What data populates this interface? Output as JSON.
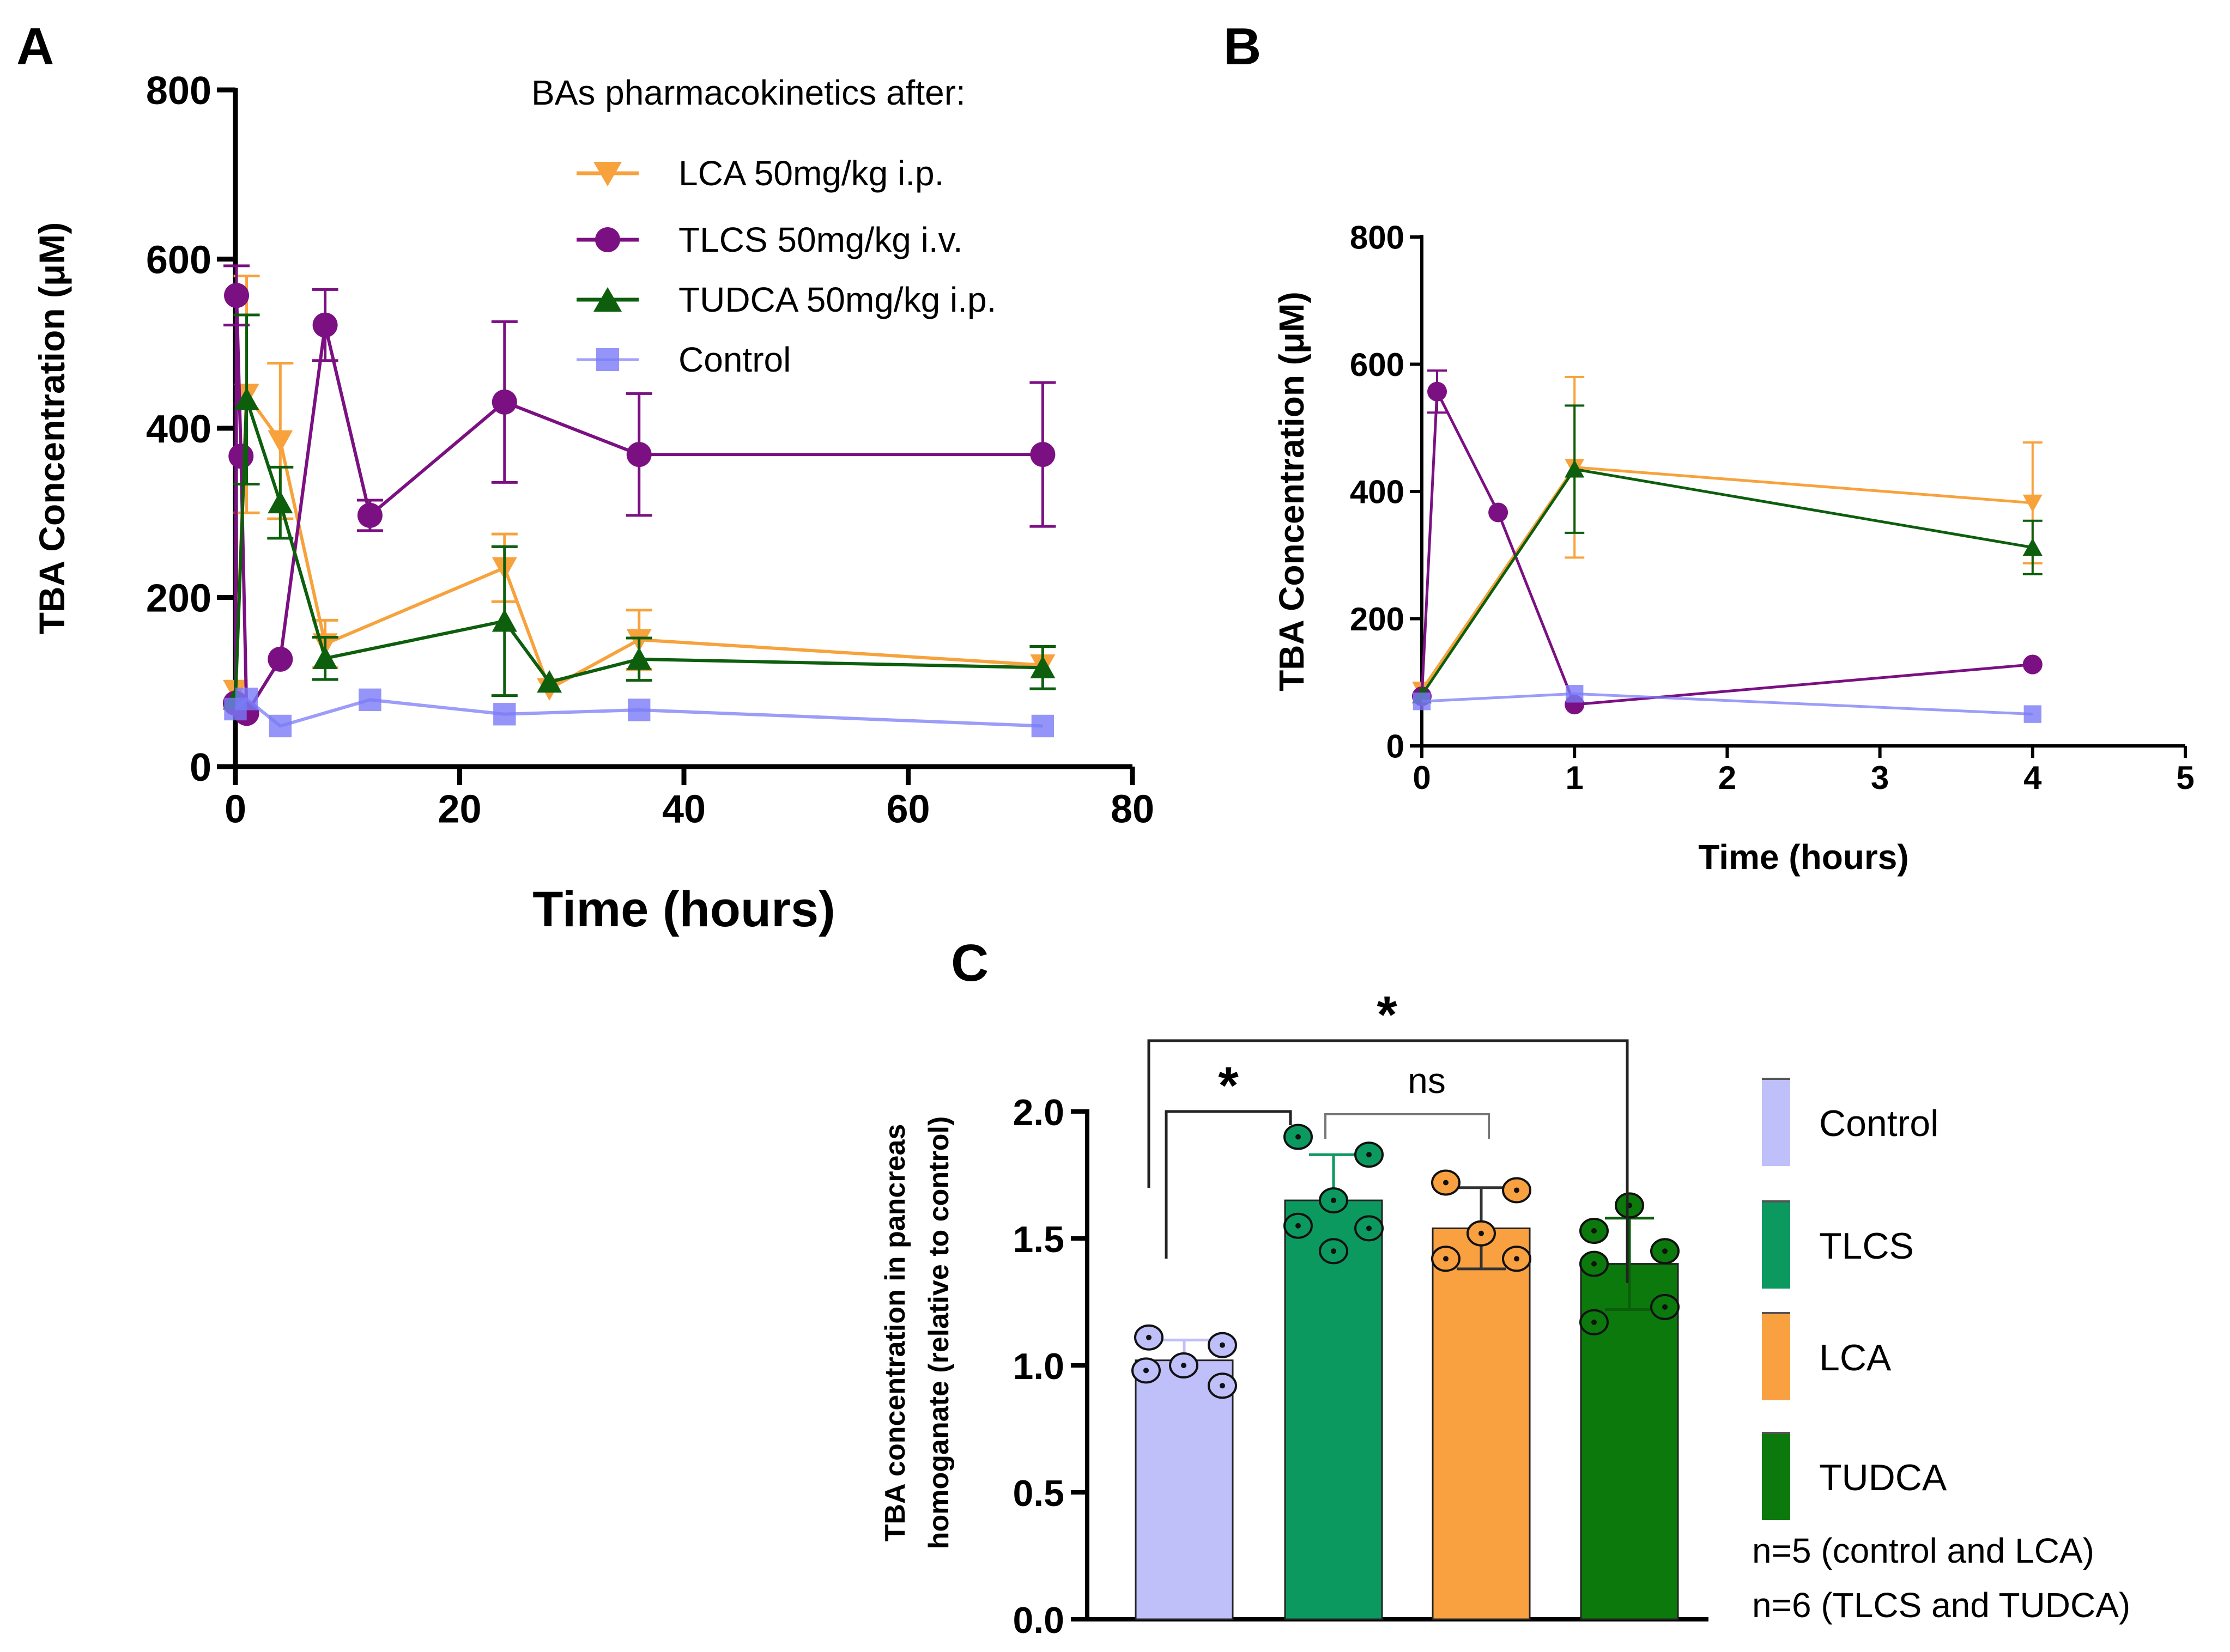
{
  "chart_data": [
    {
      "panel": "A",
      "type": "line",
      "title": "",
      "xlabel": "Time (hours)",
      "ylabel": "TBA Concentration (μM)",
      "xlim": [
        0,
        80
      ],
      "ylim": [
        0,
        800
      ],
      "xticks": [
        0,
        20,
        40,
        60,
        80
      ],
      "yticks": [
        0,
        200,
        400,
        600,
        800
      ],
      "legend_title": "BAs pharmacokinetics after:",
      "legend_position": "top-right",
      "series": [
        {
          "name": "LCA 50mg/kg i.p.",
          "color": "#f7a23c",
          "marker": "triangle-down",
          "x": [
            0,
            1,
            4,
            8,
            24,
            28,
            36,
            72
          ],
          "y": [
            90,
            440,
            385,
            145,
            235,
            92,
            150,
            120
          ],
          "err": [
            0,
            140,
            92,
            28,
            40,
            0,
            35,
            0
          ]
        },
        {
          "name": "TLCS 50mg/kg i.v.",
          "color": "#7b1082",
          "marker": "circle",
          "x": [
            0,
            0.1,
            0.5,
            1,
            4,
            8,
            12,
            24,
            36,
            72
          ],
          "y": [
            75,
            557,
            367,
            63,
            127,
            522,
            297,
            431,
            369,
            369
          ],
          "err": [
            0,
            35,
            0,
            0,
            0,
            42,
            18,
            95,
            72,
            85
          ]
        },
        {
          "name": "TUDCA 50mg/kg i.p.",
          "color": "#0d5e0d",
          "marker": "triangle-up",
          "x": [
            0,
            1,
            4,
            8,
            24,
            28,
            36,
            72
          ],
          "y": [
            80,
            434,
            312,
            128,
            172,
            100,
            127,
            117
          ],
          "err": [
            0,
            100,
            42,
            25,
            88,
            0,
            25,
            25
          ]
        },
        {
          "name": "Control",
          "color": "#7b7bf7",
          "marker": "square",
          "x": [
            0,
            1,
            4,
            12,
            24,
            36,
            72
          ],
          "y": [
            68,
            80,
            48,
            79,
            62,
            67,
            48
          ],
          "err": [
            0,
            0,
            0,
            0,
            0,
            0,
            0
          ]
        }
      ]
    },
    {
      "panel": "B",
      "type": "line",
      "title": "",
      "xlabel": "Time (hours)",
      "ylabel": "TBA Concentration (μM)",
      "xlim": [
        0,
        5
      ],
      "ylim": [
        0,
        800
      ],
      "xticks": [
        0,
        1,
        2,
        3,
        4,
        5
      ],
      "yticks": [
        0,
        200,
        400,
        600,
        800
      ],
      "series": [
        {
          "name": "LCA 50mg/kg i.p.",
          "color": "#f7a23c",
          "marker": "triangle-down",
          "x": [
            0,
            1,
            4
          ],
          "y": [
            88,
            438,
            382
          ],
          "err": [
            0,
            142,
            95
          ]
        },
        {
          "name": "TLCS 50mg/kg i.v.",
          "color": "#7b1082",
          "marker": "circle",
          "x": [
            0,
            0.1,
            0.5,
            1,
            4
          ],
          "y": [
            78,
            557,
            367,
            65,
            128
          ],
          "err": [
            0,
            33,
            0,
            0,
            0
          ]
        },
        {
          "name": "TUDCA 50mg/kg i.p.",
          "color": "#0d5e0d",
          "marker": "triangle-up",
          "x": [
            0,
            1,
            4
          ],
          "y": [
            80,
            435,
            312
          ],
          "err": [
            0,
            100,
            42
          ]
        },
        {
          "name": "Control",
          "color": "#7b7bf7",
          "marker": "square",
          "x": [
            0,
            1,
            4
          ],
          "y": [
            70,
            82,
            50
          ],
          "err": [
            0,
            0,
            0
          ]
        }
      ]
    },
    {
      "panel": "C",
      "type": "bar",
      "title": "",
      "xlabel": "",
      "ylabel_line1": "TBA concentration in pancreas",
      "ylabel_line2": "homoganate (relative to control)",
      "ylim": [
        0,
        2.0
      ],
      "yticks": [
        0.0,
        0.5,
        1.0,
        1.5,
        2.0
      ],
      "ytick_labels": [
        "0.0",
        "0.5",
        "1.0",
        "1.5",
        "2.0"
      ],
      "categories": [
        "Control",
        "TLCS",
        "LCA",
        "TUDCA"
      ],
      "values": [
        1.02,
        1.65,
        1.54,
        1.4
      ],
      "errors": [
        0.08,
        0.18,
        0.16,
        0.18
      ],
      "colors": [
        "#bfbff9",
        "#0b9960",
        "#f9a140",
        "#0b790b"
      ],
      "errbar_colors": [
        "#bfbff9",
        "#0b9960",
        "#333333",
        "#0b5e0b"
      ],
      "points": [
        [
          1.11,
          1.08,
          1.0,
          0.98,
          0.92
        ],
        [
          1.9,
          1.83,
          1.65,
          1.55,
          1.54,
          1.45
        ],
        [
          1.72,
          1.69,
          1.52,
          1.42,
          1.42
        ],
        [
          1.63,
          1.53,
          1.45,
          1.4,
          1.23,
          1.17
        ]
      ],
      "legend_position": "right",
      "significance": [
        {
          "label": "*",
          "groups": [
            "Control",
            "TLCS"
          ]
        },
        {
          "label": "ns",
          "groups": [
            "TLCS",
            "LCA"
          ]
        },
        {
          "label": "*",
          "groups": [
            "Control",
            "TUDCA"
          ]
        }
      ],
      "notes": [
        "n=5  (control and LCA)",
        "n=6 (TLCS and TUDCA)"
      ]
    }
  ],
  "panel_letters": {
    "a": "A",
    "b": "B",
    "c": "C"
  }
}
